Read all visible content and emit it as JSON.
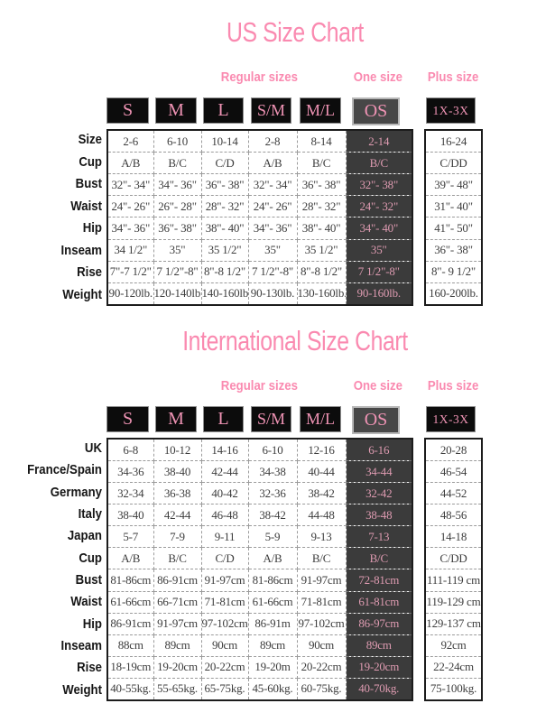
{
  "colors": {
    "accent_pink": "#fa8ab0",
    "header_text_pink": "#ef93b4",
    "os_text_pink": "#de9bb1",
    "os_cell_bg": "#3b3b3b",
    "os_header_bg": "#474747",
    "header_box_bg": "#0c0c0c",
    "table_border": "#1c1c1c",
    "dashed_line": "#9b9b9b",
    "cell_text": "#3d3d3d",
    "page_bg": "#ffffff"
  },
  "charts": [
    {
      "title": "US Size Chart",
      "groups": {
        "regular": "Regular sizes",
        "one_size": "One size",
        "plus": "Plus size"
      },
      "headers": {
        "regular": [
          "S",
          "M",
          "L",
          "S/M",
          "M/L"
        ],
        "one_size": "OS",
        "plus": "1X-3X"
      },
      "rows": [
        {
          "label": "Size",
          "cells": [
            "2-6",
            "6-10",
            "10-14",
            "2-8",
            "8-14"
          ],
          "os": "2-14",
          "plus": "16-24"
        },
        {
          "label": "Cup",
          "cells": [
            "A/B",
            "B/C",
            "C/D",
            "A/B",
            "B/C"
          ],
          "os": "B/C",
          "plus": "C/DD"
        },
        {
          "label": "Bust",
          "cells": [
            "32\"- 34\"",
            "34\"- 36\"",
            "36\"- 38\"",
            "32\"- 34\"",
            "36\"- 38\""
          ],
          "os": "32\"- 38\"",
          "plus": "39\"- 48\""
        },
        {
          "label": "Waist",
          "cells": [
            "24\"- 26\"",
            "26\"- 28\"",
            "28\"- 32\"",
            "24\"- 26\"",
            "28\"- 32\""
          ],
          "os": "24\"- 32\"",
          "plus": "31\"- 40\""
        },
        {
          "label": "Hip",
          "cells": [
            "34\"- 36\"",
            "36\"- 38\"",
            "38\"- 40\"",
            "34\"- 36\"",
            "38\"- 40\""
          ],
          "os": "34\"- 40\"",
          "plus": "41\"- 50\""
        },
        {
          "label": "Inseam",
          "cells": [
            "34 1/2\"",
            "35\"",
            "35 1/2\"",
            "35\"",
            "35 1/2\""
          ],
          "os": "35\"",
          "plus": "36\"- 38\""
        },
        {
          "label": "Rise",
          "cells": [
            "7\"-7 1/2\"",
            "7 1/2\"-8\"",
            "8\"-8 1/2\"",
            "7 1/2\"-8\"",
            "8\"-8 1/2\""
          ],
          "os": "7 1/2\"-8\"",
          "plus": "8\"- 9 1/2\""
        },
        {
          "label": "Weight",
          "cells": [
            "90-120lb.",
            "120-140lb.",
            "140-160lb.",
            "90-130lb.",
            "130-160lb."
          ],
          "os": "90-160lb.",
          "plus": "160-200lb."
        }
      ]
    },
    {
      "title": "International Size Chart",
      "groups": {
        "regular": "Regular sizes",
        "one_size": "One size",
        "plus": "Plus size"
      },
      "headers": {
        "regular": [
          "S",
          "M",
          "L",
          "S/M",
          "M/L"
        ],
        "one_size": "OS",
        "plus": "1X-3X"
      },
      "rows": [
        {
          "label": "UK",
          "cells": [
            "6-8",
            "10-12",
            "14-16",
            "6-10",
            "12-16"
          ],
          "os": "6-16",
          "plus": "20-28"
        },
        {
          "label": "France/Spain",
          "cells": [
            "34-36",
            "38-40",
            "42-44",
            "34-38",
            "40-44"
          ],
          "os": "34-44",
          "plus": "46-54"
        },
        {
          "label": "Germany",
          "cells": [
            "32-34",
            "36-38",
            "40-42",
            "32-36",
            "38-42"
          ],
          "os": "32-42",
          "plus": "44-52"
        },
        {
          "label": "Italy",
          "cells": [
            "38-40",
            "42-44",
            "46-48",
            "38-42",
            "44-48"
          ],
          "os": "38-48",
          "plus": "48-56"
        },
        {
          "label": "Japan",
          "cells": [
            "5-7",
            "7-9",
            "9-11",
            "5-9",
            "9-13"
          ],
          "os": "7-13",
          "plus": "14-18"
        },
        {
          "label": "Cup",
          "cells": [
            "A/B",
            "B/C",
            "C/D",
            "A/B",
            "B/C"
          ],
          "os": "B/C",
          "plus": "C/DD"
        },
        {
          "label": "Bust",
          "cells": [
            "81-86cm",
            "86-91cm",
            "91-97cm",
            "81-86cm",
            "91-97cm"
          ],
          "os": "72-81cm",
          "plus": "111-119 cm"
        },
        {
          "label": "Waist",
          "cells": [
            "61-66cm",
            "66-71cm",
            "71-81cm",
            "61-66cm",
            "71-81cm"
          ],
          "os": "61-81cm",
          "plus": "119-129 cm"
        },
        {
          "label": "Hip",
          "cells": [
            "86-91cm",
            "91-97cm",
            "97-102cm",
            "86-91m",
            "97-102cm"
          ],
          "os": "86-97cm",
          "plus": "129-137 cm"
        },
        {
          "label": "Inseam",
          "cells": [
            "88cm",
            "89cm",
            "90cm",
            "89cm",
            "90cm"
          ],
          "os": "89cm",
          "plus": "92cm"
        },
        {
          "label": "Rise",
          "cells": [
            "18-19cm",
            "19-20cm",
            "20-22cm",
            "19-20m",
            "20-22cm"
          ],
          "os": "19-20cm",
          "plus": "22-24cm"
        },
        {
          "label": "Weight",
          "cells": [
            "40-55kg.",
            "55-65kg.",
            "65-75kg.",
            "45-60kg.",
            "60-75kg."
          ],
          "os": "40-70kg.",
          "plus": "75-100kg."
        }
      ]
    }
  ]
}
